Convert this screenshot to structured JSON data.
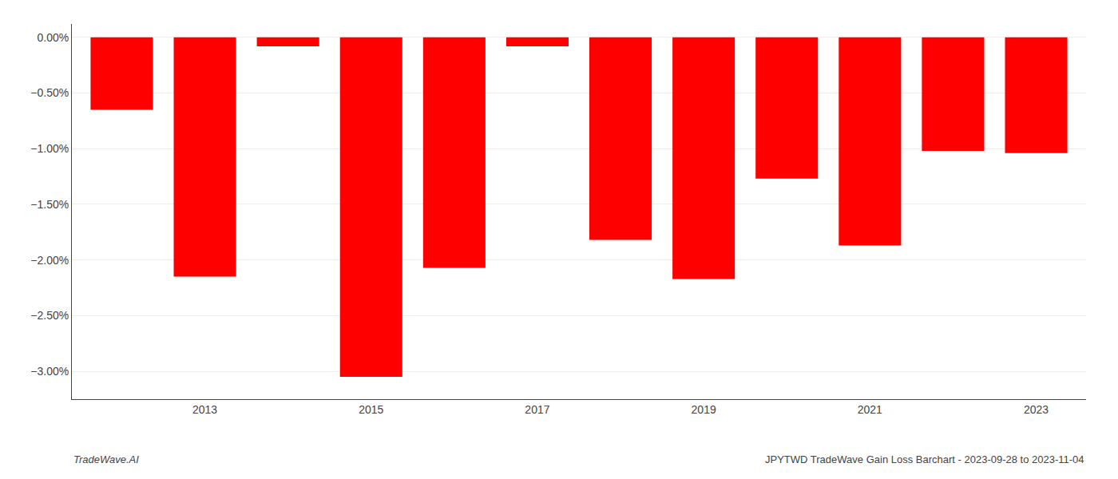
{
  "chart_data": {
    "type": "bar",
    "categories": [
      null,
      "2013",
      null,
      "2015",
      null,
      "2017",
      null,
      "2019",
      null,
      "2021",
      null,
      "2023"
    ],
    "values": [
      -0.65,
      -2.15,
      -0.08,
      -3.05,
      -2.07,
      -0.08,
      -1.82,
      -2.17,
      -1.27,
      -1.87,
      -1.02,
      -1.04
    ],
    "color": "#ff0000",
    "ylim": [
      -3.25,
      0.12
    ],
    "yticks": [
      {
        "value": 0.0,
        "label": "0.00%"
      },
      {
        "value": -0.5,
        "label": "−0.50%"
      },
      {
        "value": -1.0,
        "label": "−1.00%"
      },
      {
        "value": -1.5,
        "label": "−1.50%"
      },
      {
        "value": -2.0,
        "label": "−2.00%"
      },
      {
        "value": -2.5,
        "label": "−2.50%"
      },
      {
        "value": -3.0,
        "label": "−3.00%"
      }
    ],
    "grid": true,
    "annotations": [
      "TradeWave.AI",
      "JPYTWD TradeWave Gain Loss Barchart - 2023-09-28 to 2023-11-04"
    ]
  }
}
